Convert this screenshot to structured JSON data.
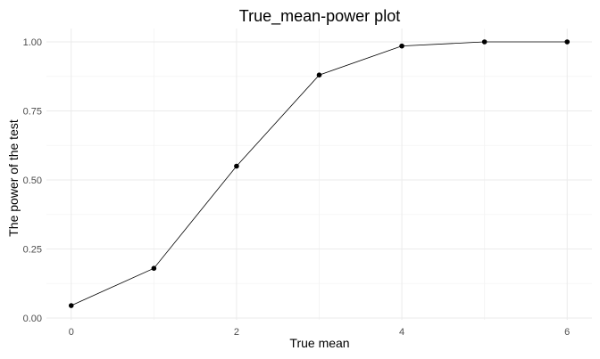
{
  "chart_data": {
    "type": "line",
    "title": "True_mean-power plot",
    "xlabel": "True mean",
    "ylabel": "The power of the test",
    "x": [
      0,
      1,
      2,
      3,
      4,
      5,
      6
    ],
    "series": [
      {
        "values": [
          0.045,
          0.18,
          0.55,
          0.88,
          0.985,
          1.0,
          1.0
        ]
      }
    ],
    "xlim": [
      -0.3,
      6.3
    ],
    "ylim": [
      0,
      1.0
    ],
    "xticks": [
      0,
      2,
      4,
      6
    ],
    "xtick_labels": [
      "0",
      "2",
      "4",
      "6"
    ],
    "yticks": [
      0,
      0.25,
      0.5,
      0.75,
      1.0
    ],
    "ytick_labels": [
      "0.00",
      "0.25",
      "0.50",
      "0.75",
      "1.00"
    ],
    "grid": true,
    "legend": "none",
    "line_color": "#000000",
    "grid_color": "#ebebeb"
  }
}
